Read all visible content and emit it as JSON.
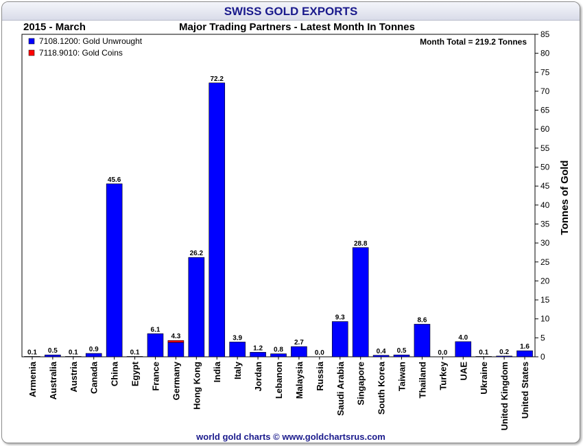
{
  "header": {
    "title": "SWISS GOLD EXPORTS",
    "period": "2015 - March",
    "subtitle": "Major Trading Partners - Latest Month In Tonnes"
  },
  "footer": {
    "text": "world gold charts © www.goldchartsrus.com"
  },
  "chart_data": {
    "type": "bar",
    "stacked": true,
    "title": "SWISS GOLD EXPORTS",
    "subtitle": "Major Trading Partners - Latest Month In Tonnes",
    "ylabel": "Tonnes of Gold",
    "ylim": [
      0,
      85
    ],
    "yticks": [
      0,
      5,
      10,
      15,
      20,
      25,
      30,
      35,
      40,
      45,
      50,
      55,
      60,
      65,
      70,
      75,
      80,
      85
    ],
    "y_axis_side": "right",
    "grid": false,
    "legend_position": "top-left",
    "annotation": "Month Total = 219.2 Tonnes",
    "categories": [
      "Armenia",
      "Australia",
      "Austria",
      "Canada",
      "China",
      "Egypt",
      "France",
      "Germany",
      "Hong Kong",
      "India",
      "Italy",
      "Jordan",
      "Lebanon",
      "Malaysia",
      "Russia",
      "Saudi Arabia",
      "Singapore",
      "South Korea",
      "Taiwan",
      "Thailand",
      "Turkey",
      "UAE",
      "Ukraine",
      "United Kingdom",
      "United States"
    ],
    "series": [
      {
        "name": "7108.1200: Gold Unwrought",
        "color": "#0000ff",
        "values": [
          0.1,
          0.5,
          0.1,
          0.9,
          45.6,
          0.1,
          6.1,
          3.8,
          26.2,
          72.2,
          3.9,
          1.2,
          0.8,
          2.7,
          0.0,
          9.3,
          28.8,
          0.4,
          0.5,
          8.6,
          0.0,
          4.0,
          0.1,
          0.2,
          1.6
        ]
      },
      {
        "name": "7118.9010: Gold Coins",
        "color": "#ff0000",
        "values": [
          0,
          0,
          0,
          0,
          0,
          0,
          0,
          0.5,
          0,
          0,
          0,
          0,
          0,
          0,
          0,
          0,
          0,
          0,
          0,
          0,
          0,
          0,
          0,
          0,
          0
        ]
      }
    ],
    "totals_labels": [
      "0.1",
      "0.5",
      "0.1",
      "0.9",
      "45.6",
      "0.1",
      "6.1",
      "4.3",
      "26.2",
      "72.2",
      "3.9",
      "1.2",
      "0.8",
      "2.7",
      "0.0",
      "9.3",
      "28.8",
      "0.4",
      "0.5",
      "8.6",
      "0.0",
      "4.0",
      "0.1",
      "0.2",
      "1.6"
    ]
  }
}
